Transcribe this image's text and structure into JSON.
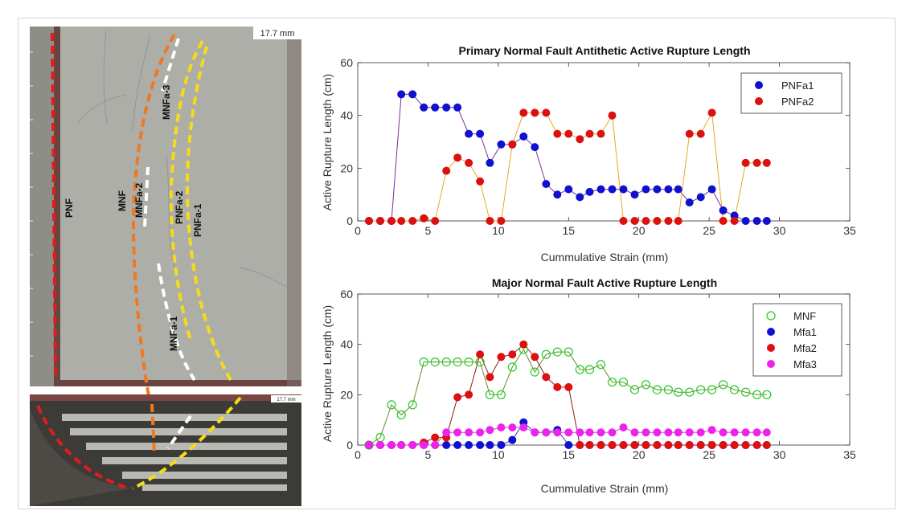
{
  "photo": {
    "scale_label_top": "17.7 mm",
    "scale_label_bottom": "17.7 mm",
    "fault_labels": [
      "PNF",
      "MNF",
      "MNFa-2",
      "MNFa-3",
      "PNFa-2",
      "PNFa-1",
      "MNFa-1"
    ]
  },
  "chart_data": [
    {
      "type": "scatter",
      "title": "Primary Normal Fault Antithetic Active Rupture Length",
      "xlabel": "Cummulative Strain (mm)",
      "ylabel": "Active Rupture Length (cm)",
      "xlim": [
        0,
        35
      ],
      "ylim": [
        0,
        60
      ],
      "xticks": [
        0,
        5,
        10,
        15,
        20,
        25,
        30,
        35
      ],
      "yticks": [
        0,
        20,
        40,
        60
      ],
      "grid": false,
      "legend_position": "top-right",
      "series": [
        {
          "name": "PNFa1",
          "marker": "filled",
          "color": "#1010d0",
          "line_color": "#7a2f9a",
          "x": [
            0.8,
            1.6,
            2.4,
            3.1,
            3.9,
            4.7,
            5.5,
            6.3,
            7.1,
            7.9,
            8.7,
            9.4,
            10.2,
            11.0,
            11.8,
            12.6,
            13.4,
            14.2,
            15.0,
            15.8,
            16.5,
            17.3,
            18.1,
            18.9,
            19.7,
            20.5,
            21.3,
            22.1,
            22.8,
            23.6,
            24.4,
            25.2,
            26.0,
            26.8,
            27.6,
            28.4,
            29.1
          ],
          "y": [
            0,
            0,
            0,
            48,
            48,
            43,
            43,
            43,
            43,
            33,
            33,
            22,
            29,
            29,
            32,
            28,
            14,
            10,
            12,
            9,
            11,
            12,
            12,
            12,
            10,
            12,
            12,
            12,
            12,
            7,
            9,
            12,
            4,
            2,
            0,
            0,
            0
          ]
        },
        {
          "name": "PNFa2",
          "marker": "filled",
          "color": "#dd1010",
          "line_color": "#e8a820",
          "x": [
            0.8,
            1.6,
            2.4,
            3.1,
            3.9,
            4.7,
            5.5,
            6.3,
            7.1,
            7.9,
            8.7,
            9.4,
            10.2,
            11.0,
            11.8,
            12.6,
            13.4,
            14.2,
            15.0,
            15.8,
            16.5,
            17.3,
            18.1,
            18.9,
            19.7,
            20.5,
            21.3,
            22.1,
            22.8,
            23.6,
            24.4,
            25.2,
            26.0,
            26.8,
            27.6,
            28.4,
            29.1
          ],
          "y": [
            0,
            0,
            0,
            0,
            0,
            1,
            0,
            19,
            24,
            22,
            15,
            0,
            0,
            29,
            41,
            41,
            41,
            33,
            33,
            31,
            33,
            33,
            40,
            0,
            0,
            0,
            0,
            0,
            0,
            33,
            33,
            41,
            0,
            0,
            22,
            22,
            22
          ]
        }
      ]
    },
    {
      "type": "scatter",
      "title": "Major Normal Fault Active Rupture Length",
      "xlabel": "Cummulative Strain (mm)",
      "ylabel": "Active Rupture Length (cm)",
      "xlim": [
        0,
        35
      ],
      "ylim": [
        0,
        60
      ],
      "xticks": [
        0,
        5,
        10,
        15,
        20,
        25,
        30,
        35
      ],
      "yticks": [
        0,
        20,
        40,
        60
      ],
      "grid": false,
      "legend_position": "top-right",
      "series": [
        {
          "name": "MNF",
          "marker": "open",
          "color": "#22cc22",
          "line_color": "#6a8a2a",
          "x": [
            0.8,
            1.6,
            2.4,
            3.1,
            3.9,
            4.7,
            5.5,
            6.3,
            7.1,
            7.9,
            8.7,
            9.4,
            10.2,
            11.0,
            11.8,
            12.6,
            13.4,
            14.2,
            15.0,
            15.8,
            16.5,
            17.3,
            18.1,
            18.9,
            19.7,
            20.5,
            21.3,
            22.1,
            22.8,
            23.6,
            24.4,
            25.2,
            26.0,
            26.8,
            27.6,
            28.4,
            29.1
          ],
          "y": [
            0,
            3,
            16,
            12,
            16,
            33,
            33,
            33,
            33,
            33,
            33,
            20,
            20,
            31,
            38,
            29,
            36,
            37,
            37,
            30,
            30,
            32,
            25,
            25,
            22,
            24,
            22,
            22,
            21,
            21,
            22,
            22,
            24,
            22,
            21,
            20,
            20
          ]
        },
        {
          "name": "Mfa1",
          "marker": "filled",
          "color": "#1010d0",
          "line_color": "#3a3acc",
          "x": [
            0.8,
            1.6,
            2.4,
            3.1,
            3.9,
            4.7,
            5.5,
            6.3,
            7.1,
            7.9,
            8.7,
            9.4,
            10.2,
            11.0,
            11.8,
            12.6,
            13.4,
            14.2,
            15.0,
            15.8,
            16.5,
            17.3,
            18.1,
            18.9,
            19.7,
            20.5,
            21.3,
            22.1,
            22.8,
            23.6,
            24.4,
            25.2,
            26.0,
            26.8,
            27.6,
            28.4,
            29.1
          ],
          "y": [
            0,
            0,
            0,
            0,
            0,
            0,
            0,
            0,
            0,
            0,
            0,
            0,
            0,
            2,
            9,
            5,
            5,
            6,
            0,
            0,
            0,
            0,
            0,
            0,
            0,
            0,
            0,
            0,
            0,
            0,
            0,
            0,
            0,
            0,
            0,
            0,
            0
          ]
        },
        {
          "name": "Mfa2",
          "marker": "filled",
          "color": "#dd1010",
          "line_color": "#8b1a1a",
          "x": [
            0.8,
            1.6,
            2.4,
            3.1,
            3.9,
            4.7,
            5.5,
            6.3,
            7.1,
            7.9,
            8.7,
            9.4,
            10.2,
            11.0,
            11.8,
            12.6,
            13.4,
            14.2,
            15.0,
            15.8,
            16.5,
            17.3,
            18.1,
            18.9,
            19.7,
            20.5,
            21.3,
            22.1,
            22.8,
            23.6,
            24.4,
            25.2,
            26.0,
            26.8,
            27.6,
            28.4,
            29.1
          ],
          "y": [
            0,
            0,
            0,
            0,
            0,
            1,
            3,
            3,
            19,
            20,
            36,
            27,
            35,
            36,
            40,
            35,
            27,
            23,
            23,
            0,
            0,
            0,
            0,
            0,
            0,
            0,
            0,
            0,
            0,
            0,
            0,
            0,
            0,
            0,
            0,
            0,
            0
          ]
        },
        {
          "name": "Mfa3",
          "marker": "filled",
          "color": "#ee22ee",
          "line_color": "#b060b0",
          "x": [
            0.8,
            1.6,
            2.4,
            3.1,
            3.9,
            4.7,
            5.5,
            6.3,
            7.1,
            7.9,
            8.7,
            9.4,
            10.2,
            11.0,
            11.8,
            12.6,
            13.4,
            14.2,
            15.0,
            15.8,
            16.5,
            17.3,
            18.1,
            18.9,
            19.7,
            20.5,
            21.3,
            22.1,
            22.8,
            23.6,
            24.4,
            25.2,
            26.0,
            26.8,
            27.6,
            28.4,
            29.1
          ],
          "y": [
            0,
            0,
            0,
            0,
            0,
            0,
            0,
            5,
            5,
            5,
            5,
            6,
            7,
            7,
            7,
            5,
            5,
            5,
            5,
            5,
            5,
            5,
            5,
            7,
            5,
            5,
            5,
            5,
            5,
            5,
            5,
            6,
            5,
            5,
            5,
            5,
            5
          ]
        }
      ]
    }
  ]
}
